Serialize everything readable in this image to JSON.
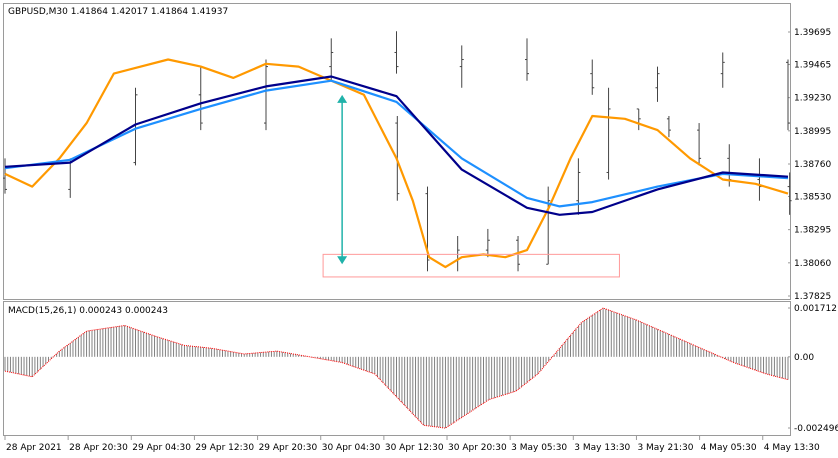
{
  "window": {
    "symbol_info": "GBPUSD,M30  1.41864 1.42017 1.41864 1.41937",
    "indicator_info": "MACD(15,26,1) 0.000243 0.000243"
  },
  "colors": {
    "ema_fast": "#ff9900",
    "ma_mid": "#1e90ff",
    "ma_slow": "#00008b",
    "macd_hist": "#808080",
    "macd_signal": "#ff0000",
    "arrow": "#20b2aa",
    "box": "#ff9999"
  },
  "chart_data": [
    {
      "type": "line",
      "name": "price",
      "ylim": [
        1.37825,
        1.39695
      ],
      "y_ticks": [
        "1.39695",
        "1.39465",
        "1.39230",
        "1.38995",
        "1.38760",
        "1.38530",
        "1.38295",
        "1.38060",
        "1.37825"
      ],
      "x_ticks": [
        "28 Apr 2021",
        "28 Apr 20:30",
        "29 Apr 04:30",
        "29 Apr 12:30",
        "29 Apr 20:30",
        "30 Apr 04:30",
        "30 Apr 12:30",
        "30 Apr 20:30",
        "3 May 05:30",
        "3 May 13:30",
        "3 May 21:30",
        "4 May 05:30",
        "4 May 13:30"
      ],
      "bars_x": [
        0,
        24,
        48,
        72,
        96,
        120,
        144,
        168,
        192,
        216,
        240,
        264,
        288
      ],
      "bars": [
        [
          1.3866,
          1.388,
          1.3855,
          1.3858
        ],
        [
          1.3858,
          1.388,
          1.3852,
          1.3877
        ],
        [
          1.3877,
          1.393,
          1.3875,
          1.3925
        ],
        [
          1.3925,
          1.3945,
          1.39,
          1.3905
        ],
        [
          1.3905,
          1.395,
          1.39,
          1.3945
        ],
        [
          1.3945,
          1.3965,
          1.3935,
          1.3955
        ],
        [
          1.3955,
          1.397,
          1.394,
          1.3945
        ],
        [
          1.3945,
          1.396,
          1.393,
          1.395
        ],
        [
          1.395,
          1.3965,
          1.3935,
          1.394
        ],
        [
          1.394,
          1.395,
          1.3925,
          1.393
        ],
        [
          1.393,
          1.3945,
          1.392,
          1.394
        ],
        [
          1.394,
          1.3955,
          1.393,
          1.3948
        ],
        [
          1.3948,
          1.395,
          1.39,
          1.3905
        ],
        [
          1.3905,
          1.391,
          1.385,
          1.3855
        ],
        [
          1.3855,
          1.386,
          1.38,
          1.3808
        ],
        [
          1.3808,
          1.3825,
          1.38,
          1.3815
        ],
        [
          1.3815,
          1.383,
          1.381,
          1.3822
        ],
        [
          1.3822,
          1.3825,
          1.38,
          1.3805
        ],
        [
          1.3805,
          1.386,
          1.3805,
          1.385
        ],
        [
          1.385,
          1.388,
          1.384,
          1.387
        ],
        [
          1.387,
          1.393,
          1.3865,
          1.3915
        ],
        [
          1.3915,
          1.3915,
          1.39,
          1.3908
        ],
        [
          1.3908,
          1.391,
          1.3895,
          1.39
        ],
        [
          1.39,
          1.3905,
          1.3875,
          1.388
        ],
        [
          1.388,
          1.389,
          1.386,
          1.3865
        ],
        [
          1.3865,
          1.388,
          1.385,
          1.386
        ],
        [
          1.386,
          1.387,
          1.384,
          1.385
        ]
      ],
      "bars_index_scale": 11.1,
      "series": [
        {
          "key": "ema_fast",
          "x": [
            0,
            10,
            20,
            30,
            40,
            60,
            72,
            84,
            96,
            108,
            120,
            132,
            144,
            150,
            156,
            162,
            168,
            176,
            184,
            192,
            200,
            208,
            216,
            228,
            240,
            252,
            264,
            276,
            288
          ],
          "values": [
            1.3869,
            1.386,
            1.388,
            1.3905,
            1.394,
            1.395,
            1.3945,
            1.3937,
            1.3947,
            1.3945,
            1.3935,
            1.3925,
            1.388,
            1.385,
            1.381,
            1.3803,
            1.381,
            1.3812,
            1.381,
            1.3815,
            1.3845,
            1.388,
            1.391,
            1.3908,
            1.39,
            1.388,
            1.3865,
            1.3862,
            1.3855
          ]
        },
        {
          "key": "ma_mid",
          "x": [
            0,
            24,
            48,
            72,
            96,
            120,
            144,
            168,
            192,
            204,
            216,
            240,
            264,
            288
          ],
          "values": [
            1.3873,
            1.3879,
            1.3901,
            1.3915,
            1.3928,
            1.3935,
            1.392,
            1.388,
            1.3852,
            1.3846,
            1.3849,
            1.386,
            1.3869,
            1.3866
          ]
        },
        {
          "key": "ma_slow",
          "x": [
            0,
            24,
            48,
            72,
            96,
            120,
            144,
            168,
            192,
            204,
            216,
            240,
            264,
            288
          ],
          "values": [
            1.3874,
            1.3877,
            1.3904,
            1.3919,
            1.3931,
            1.3938,
            1.3924,
            1.3872,
            1.3845,
            1.384,
            1.3842,
            1.3858,
            1.387,
            1.3867
          ]
        }
      ],
      "annotations": {
        "arrow": {
          "x": 124,
          "from": 1.3925,
          "to": 1.3805
        },
        "box": {
          "x_from": 117,
          "x_to": 226,
          "y_from": 1.3812,
          "y_to": 1.3796
        }
      }
    },
    {
      "type": "bar",
      "name": "macd",
      "ylim": [
        -0.002496,
        0.001712
      ],
      "y_ticks": [
        "0.001712",
        "0.00",
        "-0.002496"
      ],
      "x": [
        0,
        10,
        20,
        30,
        44,
        56,
        66,
        76,
        88,
        100,
        112,
        124,
        136,
        146,
        154,
        162,
        170,
        178,
        188,
        196,
        204,
        212,
        220,
        232,
        244,
        256,
        268,
        280,
        288
      ],
      "values": [
        -0.0005,
        -0.0007,
        0.0002,
        0.0009,
        0.0011,
        0.0007,
        0.0004,
        0.0003,
        0.0001,
        0.0002,
        0.0,
        -0.0002,
        -0.0006,
        -0.0016,
        -0.0024,
        -0.0025,
        -0.002,
        -0.0015,
        -0.0012,
        -0.0006,
        0.0003,
        0.0012,
        0.00171,
        0.0013,
        0.0008,
        0.0003,
        -0.0002,
        -0.0006,
        -0.0008
      ]
    }
  ]
}
